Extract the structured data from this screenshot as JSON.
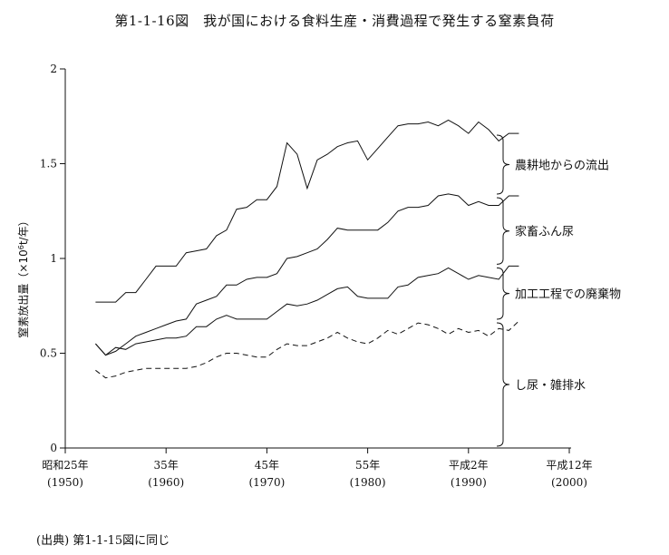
{
  "title": "第1-1-16図　我が国における食料生産・消費過程で発生する窒素負荷",
  "source_note": "(出典) 第1-1-15図に同じ",
  "chart_data": {
    "type": "area",
    "title": "第1-1-16図　我が国における食料生産・消費過程で発生する窒素負荷",
    "ylabel_main": "窒素放出量（×10",
    "ylabel_sup": "6",
    "ylabel_tail": "t/年）",
    "ylim": [
      0,
      2
    ],
    "xlim": [
      1950,
      2000
    ],
    "y_ticks": [
      {
        "value": 0,
        "label": "0"
      },
      {
        "value": 0.5,
        "label": "0.5"
      },
      {
        "value": 1,
        "label": "1"
      },
      {
        "value": 1.5,
        "label": "1.5"
      },
      {
        "value": 2,
        "label": "2"
      }
    ],
    "x_ticks": [
      {
        "value": 1950,
        "label": "昭和25年",
        "sub": "(1950)"
      },
      {
        "value": 1960,
        "label": "35年",
        "sub": "(1960)"
      },
      {
        "value": 1970,
        "label": "45年",
        "sub": "(1970)"
      },
      {
        "value": 1980,
        "label": "55年",
        "sub": "(1980)"
      },
      {
        "value": 1990,
        "label": "平成2年",
        "sub": "(1990)"
      },
      {
        "value": 2000,
        "label": "平成12年",
        "sub": "(2000)"
      }
    ],
    "series": [
      {
        "name": "し尿・雑排水",
        "dash": true,
        "x": [
          1953,
          1954,
          1955,
          1956,
          1957,
          1958,
          1959,
          1960,
          1961,
          1962,
          1963,
          1964,
          1965,
          1966,
          1967,
          1968,
          1969,
          1970,
          1971,
          1972,
          1973,
          1974,
          1975,
          1976,
          1977,
          1978,
          1979,
          1980,
          1981,
          1982,
          1983,
          1984,
          1985,
          1986,
          1987,
          1988,
          1989,
          1990,
          1991,
          1992,
          1993,
          1994,
          1995
        ],
        "values": [
          0.41,
          0.37,
          0.38,
          0.4,
          0.41,
          0.42,
          0.42,
          0.42,
          0.42,
          0.42,
          0.43,
          0.45,
          0.48,
          0.5,
          0.5,
          0.49,
          0.48,
          0.48,
          0.52,
          0.55,
          0.54,
          0.54,
          0.56,
          0.58,
          0.61,
          0.58,
          0.56,
          0.55,
          0.58,
          0.62,
          0.6,
          0.63,
          0.66,
          0.65,
          0.63,
          0.6,
          0.63,
          0.61,
          0.62,
          0.59,
          0.63,
          0.62,
          0.67
        ]
      },
      {
        "name": "加工工程での廃棄物",
        "dash": false,
        "x": [
          1953,
          1954,
          1955,
          1956,
          1957,
          1958,
          1959,
          1960,
          1961,
          1962,
          1963,
          1964,
          1965,
          1966,
          1967,
          1968,
          1969,
          1970,
          1971,
          1972,
          1973,
          1974,
          1975,
          1976,
          1977,
          1978,
          1979,
          1980,
          1981,
          1982,
          1983,
          1984,
          1985,
          1986,
          1987,
          1988,
          1989,
          1990,
          1991,
          1992,
          1993,
          1994,
          1995
        ],
        "values": [
          0.55,
          0.49,
          0.53,
          0.52,
          0.55,
          0.56,
          0.57,
          0.58,
          0.58,
          0.59,
          0.64,
          0.64,
          0.68,
          0.7,
          0.68,
          0.68,
          0.68,
          0.68,
          0.72,
          0.76,
          0.75,
          0.76,
          0.78,
          0.81,
          0.84,
          0.85,
          0.8,
          0.79,
          0.79,
          0.79,
          0.85,
          0.86,
          0.9,
          0.91,
          0.92,
          0.95,
          0.92,
          0.89,
          0.91,
          0.9,
          0.89,
          0.96,
          0.96
        ]
      },
      {
        "name": "家畜ふん尿",
        "dash": false,
        "x": [
          1953,
          1954,
          1955,
          1956,
          1957,
          1958,
          1959,
          1960,
          1961,
          1962,
          1963,
          1964,
          1965,
          1966,
          1967,
          1968,
          1969,
          1970,
          1971,
          1972,
          1973,
          1974,
          1975,
          1976,
          1977,
          1978,
          1979,
          1980,
          1981,
          1982,
          1983,
          1984,
          1985,
          1986,
          1987,
          1988,
          1989,
          1990,
          1991,
          1992,
          1993,
          1994,
          1995
        ],
        "values": [
          0.55,
          0.49,
          0.51,
          0.55,
          0.59,
          0.61,
          0.63,
          0.65,
          0.67,
          0.68,
          0.76,
          0.78,
          0.8,
          0.86,
          0.86,
          0.89,
          0.9,
          0.9,
          0.92,
          1.0,
          1.01,
          1.03,
          1.05,
          1.1,
          1.16,
          1.15,
          1.15,
          1.15,
          1.15,
          1.19,
          1.25,
          1.27,
          1.27,
          1.28,
          1.33,
          1.34,
          1.33,
          1.28,
          1.3,
          1.28,
          1.28,
          1.33,
          1.33
        ]
      },
      {
        "name": "農耕地からの流出",
        "dash": false,
        "x": [
          1953,
          1954,
          1955,
          1956,
          1957,
          1958,
          1959,
          1960,
          1961,
          1962,
          1963,
          1964,
          1965,
          1966,
          1967,
          1968,
          1969,
          1970,
          1971,
          1972,
          1973,
          1974,
          1975,
          1976,
          1977,
          1978,
          1979,
          1980,
          1981,
          1982,
          1983,
          1984,
          1985,
          1986,
          1987,
          1988,
          1989,
          1990,
          1991,
          1992,
          1993,
          1994,
          1995
        ],
        "values": [
          0.77,
          0.77,
          0.77,
          0.82,
          0.82,
          0.89,
          0.96,
          0.96,
          0.96,
          1.03,
          1.04,
          1.05,
          1.12,
          1.15,
          1.26,
          1.27,
          1.31,
          1.31,
          1.38,
          1.61,
          1.55,
          1.37,
          1.52,
          1.55,
          1.59,
          1.61,
          1.62,
          1.52,
          1.58,
          1.64,
          1.7,
          1.71,
          1.71,
          1.72,
          1.7,
          1.73,
          1.7,
          1.66,
          1.72,
          1.68,
          1.62,
          1.66,
          1.66
        ]
      }
    ]
  }
}
